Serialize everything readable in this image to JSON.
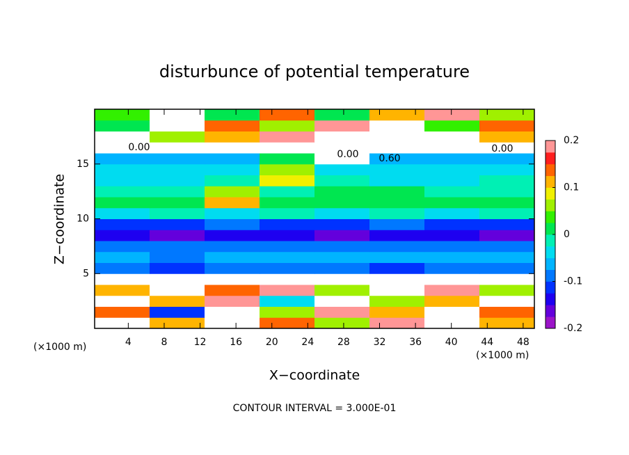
{
  "chart_data": {
    "type": "heatmap",
    "title": "disturbunce of potential temperature",
    "x_label": "X−coordinate",
    "y_label": "Z−coordinate",
    "x_unit": "(×1000 m)",
    "y_unit": "(×1000 m)",
    "footer": "CONTOUR INTERVAL = 3.000E-01",
    "contour_labels": [
      "0.00",
      "0.60",
      "0.00",
      "0.00"
    ],
    "xlim": [
      0.25,
      49.25
    ],
    "ylim": [
      0,
      20
    ],
    "xticks": [
      4,
      8,
      12,
      16,
      20,
      24,
      28,
      32,
      36,
      40,
      44,
      48
    ],
    "yticks": [
      5,
      10,
      15
    ],
    "x_bins": [
      0.25,
      6.375,
      12.5,
      18.625,
      24.75,
      30.875,
      37,
      43.125,
      49.25
    ],
    "y_bins": [
      0,
      1,
      2,
      3,
      4,
      5,
      6,
      7,
      8,
      9,
      10,
      11,
      12,
      13,
      14,
      15,
      16,
      17,
      18,
      19,
      20
    ],
    "values": [
      [
        0.25,
        0.12,
        0.25,
        0.15,
        0.05,
        0.2,
        0.25,
        0.1
      ],
      [
        0.15,
        -0.12,
        0.25,
        0.05,
        0.2,
        0.12,
        0.25,
        0.15
      ],
      [
        0.25,
        0.1,
        0.2,
        -0.05,
        0.25,
        0.05,
        0.1,
        0.25
      ],
      [
        0.1,
        0.25,
        0.15,
        0.2,
        0.05,
        0.25,
        0.2,
        0.05
      ],
      [
        0.25,
        0.25,
        0.25,
        0.25,
        0.25,
        0.25,
        0.25,
        0.25
      ],
      [
        -0.1,
        -0.12,
        -0.1,
        -0.08,
        -0.1,
        -0.12,
        -0.08,
        -0.1
      ],
      [
        -0.07,
        -0.08,
        -0.07,
        -0.06,
        -0.07,
        -0.06,
        -0.07,
        -0.07
      ],
      [
        -0.08,
        -0.09,
        -0.08,
        -0.1,
        -0.09,
        -0.08,
        -0.09,
        -0.08
      ],
      [
        -0.15,
        -0.16,
        -0.15,
        -0.15,
        -0.16,
        -0.15,
        -0.15,
        -0.16
      ],
      [
        -0.11,
        -0.12,
        -0.1,
        -0.11,
        -0.12,
        -0.1,
        -0.11,
        -0.12
      ],
      [
        -0.03,
        -0.02,
        -0.03,
        -0.02,
        -0.03,
        -0.02,
        -0.03,
        -0.02
      ],
      [
        0,
        0.01,
        0.1,
        0,
        0.01,
        0,
        0,
        0.01
      ],
      [
        -0.02,
        -0.01,
        0.05,
        -0.01,
        0,
        0,
        -0.02,
        -0.01
      ],
      [
        -0.03,
        -0.03,
        -0.02,
        0.08,
        -0.02,
        -0.03,
        -0.03,
        -0.02
      ],
      [
        -0.04,
        -0.04,
        -0.03,
        0.05,
        -0.03,
        -0.04,
        -0.04,
        -0.03
      ],
      [
        -0.07,
        -0.06,
        -0.07,
        0.02,
        0.25,
        -0.06,
        -0.07,
        -0.06
      ],
      [
        0.25,
        0.25,
        0.25,
        0.25,
        0.25,
        0.25,
        0.25,
        0.25
      ],
      [
        0.25,
        0.05,
        0.1,
        0.2,
        0.25,
        0.25,
        0.25,
        0.12
      ],
      [
        0.02,
        0.25,
        0.15,
        0.05,
        0.2,
        0.25,
        0.03,
        0.15
      ],
      [
        0.03,
        0.25,
        0,
        0.15,
        0.02,
        0.1,
        0.2,
        0.05
      ]
    ],
    "out_of_range_color": "#ffffff",
    "colorbar": {
      "lim": [
        -0.2,
        0.2
      ],
      "ticks": [
        0.2,
        0.1,
        0,
        -0.1,
        -0.2
      ],
      "colors": [
        "#9b14c8",
        "#6400dc",
        "#1e00f0",
        "#0032ff",
        "#0078ff",
        "#00b4ff",
        "#00dcf0",
        "#00f0b4",
        "#00e650",
        "#32f000",
        "#a0f000",
        "#f0f000",
        "#ffb400",
        "#ff6400",
        "#ff1e1e",
        "#ff9696"
      ]
    }
  }
}
